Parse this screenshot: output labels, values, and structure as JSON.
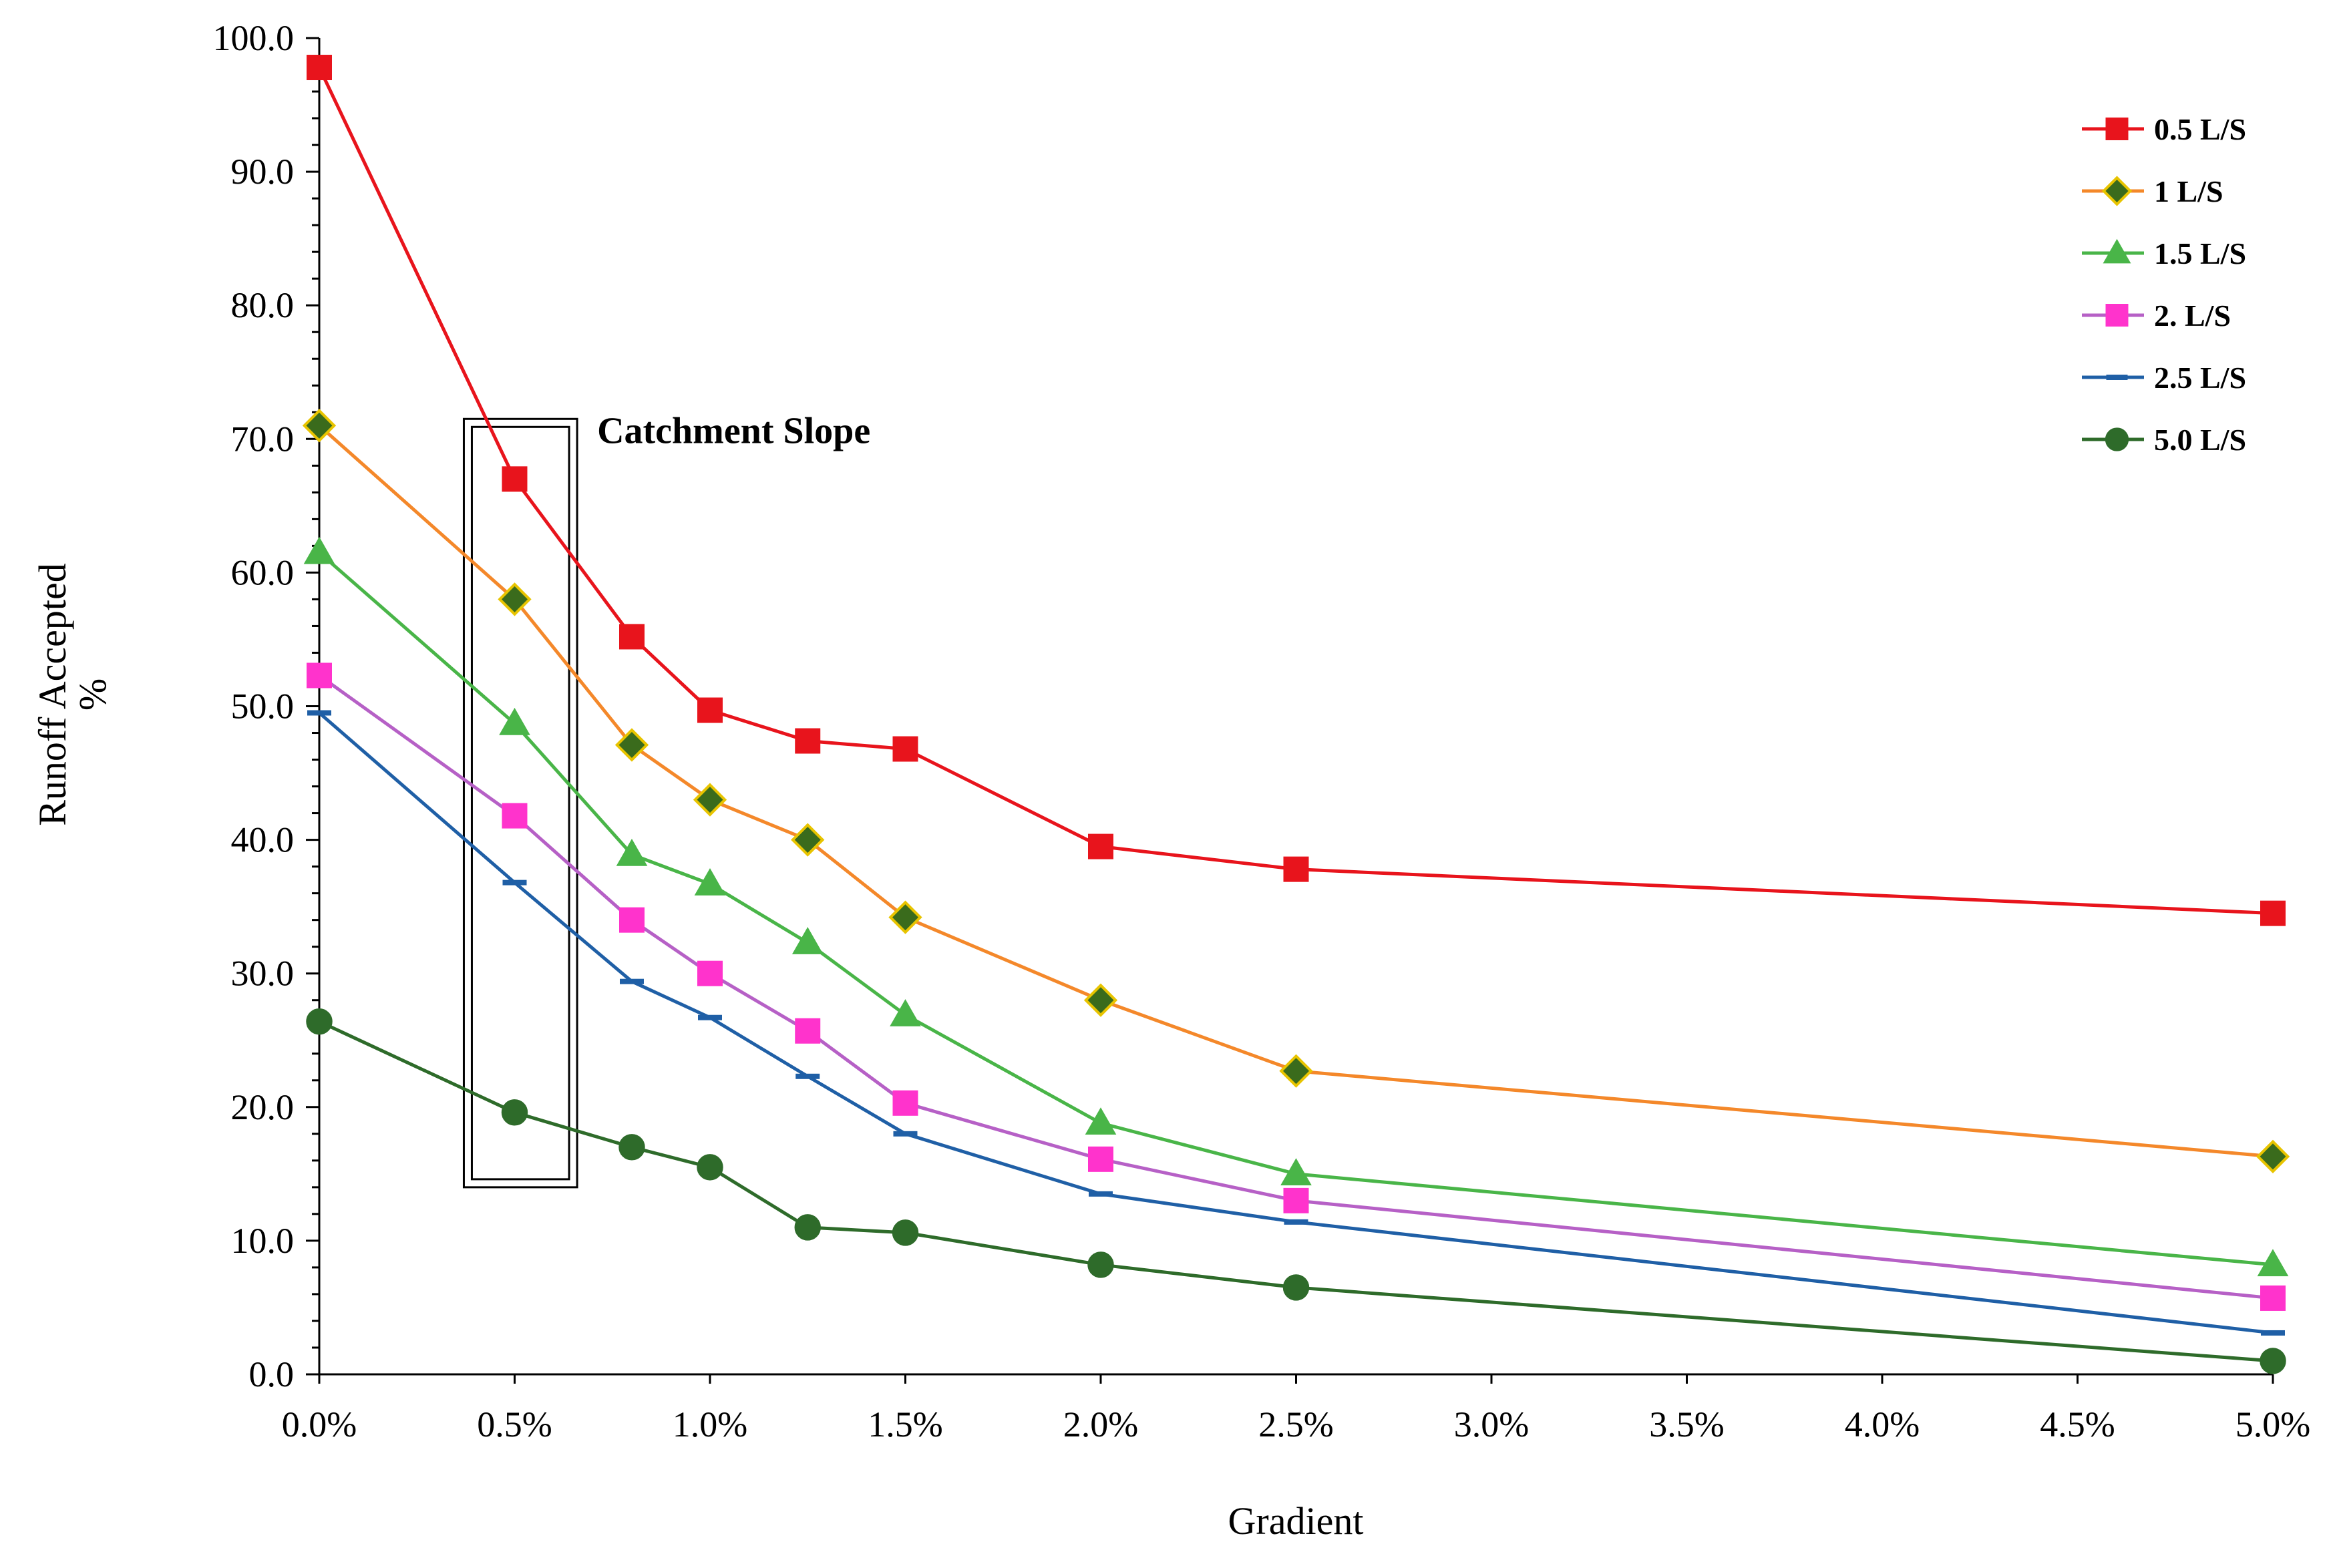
{
  "chart_data": {
    "type": "line",
    "title": "",
    "xlabel": "Gradient",
    "ylabel_line1": "Runoff Accepted",
    "ylabel_line2": "%",
    "x": [
      0.0,
      0.5,
      0.8,
      1.0,
      1.25,
      1.5,
      2.0,
      2.5,
      5.0
    ],
    "xlim": [
      0,
      5
    ],
    "ylim": [
      0,
      100
    ],
    "x_ticks": [
      0,
      0.5,
      1.0,
      1.5,
      2.0,
      2.5,
      3.0,
      3.5,
      4.0,
      4.5,
      5.0
    ],
    "x_tick_labels": [
      "0.0%",
      "0.5%",
      "1.0%",
      "1.5%",
      "2.0%",
      "2.5%",
      "3.0%",
      "3.5%",
      "4.0%",
      "4.5%",
      "5.0%"
    ],
    "y_ticks": [
      0,
      10,
      20,
      30,
      40,
      50,
      60,
      70,
      80,
      90,
      100
    ],
    "y_tick_labels": [
      "0.0",
      "10.0",
      "20.0",
      "30.0",
      "40.0",
      "50.0",
      "60.0",
      "70.0",
      "80.0",
      "90.0",
      "100.0"
    ],
    "grid": false,
    "legend_position": "top-right",
    "series": [
      {
        "name": "0.5 L/S",
        "color": "#e8141c",
        "marker": "square",
        "marker_fill": "#e8141c",
        "marker_stroke": "#e8141c",
        "values": [
          97.8,
          67.0,
          55.2,
          49.7,
          47.4,
          46.8,
          39.5,
          37.8,
          34.5
        ]
      },
      {
        "name": "1 L/S",
        "color": "#f4882a",
        "marker": "diamond",
        "marker_fill": "#3a6b1c",
        "marker_stroke": "#e8c400",
        "values": [
          71.0,
          58.0,
          47.1,
          43.0,
          40.0,
          34.2,
          28.0,
          22.7,
          16.3
        ]
      },
      {
        "name": "1.5 L/S",
        "color": "#49b548",
        "marker": "triangle",
        "marker_fill": "#49b548",
        "marker_stroke": "#49b548",
        "values": [
          61.5,
          48.7,
          38.9,
          36.7,
          32.3,
          26.9,
          18.8,
          15.0,
          8.2
        ]
      },
      {
        "name": "2. L/S",
        "color": "#b660c6",
        "marker": "square",
        "marker_fill": "#ff33cc",
        "marker_stroke": "#ff33cc",
        "values": [
          52.3,
          41.8,
          34.0,
          30.0,
          25.7,
          20.3,
          16.1,
          13.0,
          5.7
        ]
      },
      {
        "name": "2.5 L/S",
        "color": "#1f5fa6",
        "marker": "dash",
        "marker_fill": "#1f5fa6",
        "marker_stroke": "#1f5fa6",
        "values": [
          49.5,
          36.8,
          29.4,
          26.7,
          22.3,
          18.0,
          13.5,
          11.4,
          3.1
        ]
      },
      {
        "name": "5.0 L/S",
        "color": "#2e6b2a",
        "marker": "circle",
        "marker_fill": "#2e6b2a",
        "marker_stroke": "#2e6b2a",
        "values": [
          26.4,
          19.6,
          17.0,
          15.5,
          11.0,
          10.6,
          8.2,
          6.5,
          1.0
        ]
      }
    ],
    "annotations": [
      {
        "label": "Catchment Slope",
        "x_range": [
          0.37,
          0.66
        ],
        "y_range": [
          14,
          71.5
        ]
      }
    ]
  }
}
